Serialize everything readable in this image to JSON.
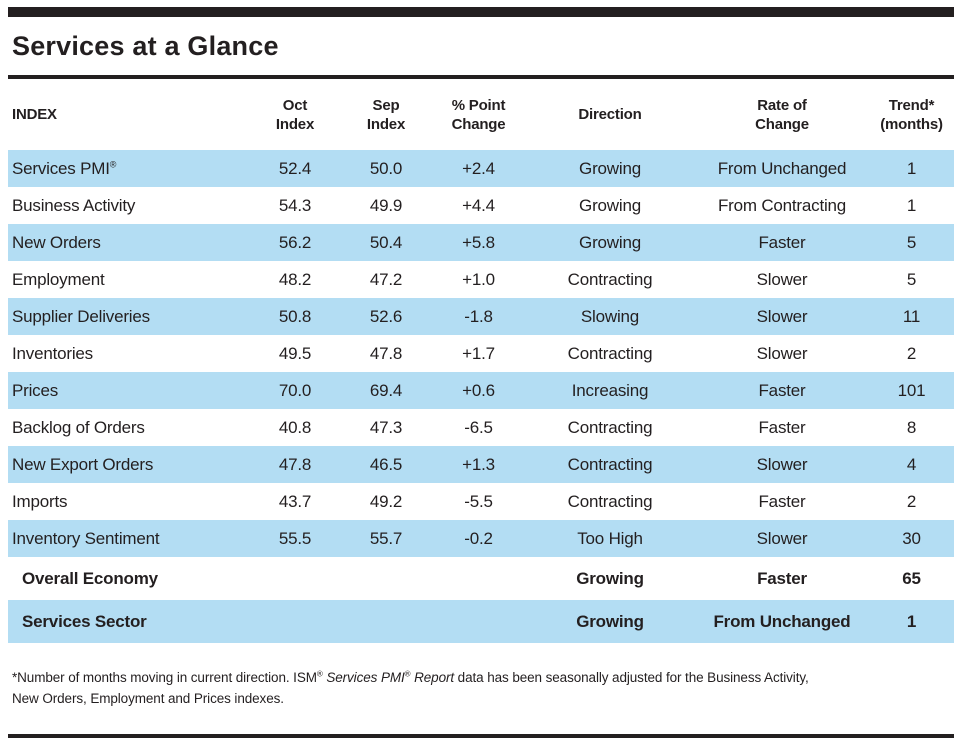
{
  "title": "Services at a Glance",
  "colors": {
    "row_shade": "#b3ddf3",
    "ink": "#231f20"
  },
  "table": {
    "columns": [
      {
        "id": "label",
        "lines": [
          "INDEX"
        ]
      },
      {
        "id": "oct",
        "lines": [
          "Oct",
          "Index"
        ]
      },
      {
        "id": "sep",
        "lines": [
          "Sep",
          "Index"
        ]
      },
      {
        "id": "change",
        "lines": [
          "% Point",
          "Change"
        ]
      },
      {
        "id": "direction",
        "lines": [
          "Direction"
        ]
      },
      {
        "id": "rate",
        "lines": [
          "Rate of",
          "Change"
        ]
      },
      {
        "id": "trend",
        "lines": [
          "Trend*",
          "(months)"
        ]
      }
    ],
    "rows": [
      {
        "label": "Services PMI®",
        "oct": "52.4",
        "sep": "50.0",
        "change": "+2.4",
        "direction": "Growing",
        "rate": "From Unchanged",
        "trend": "1",
        "shaded": true,
        "bold": false
      },
      {
        "label": "Business Activity",
        "oct": "54.3",
        "sep": "49.9",
        "change": "+4.4",
        "direction": "Growing",
        "rate": "From Contracting",
        "trend": "1",
        "shaded": false,
        "bold": false
      },
      {
        "label": "New Orders",
        "oct": "56.2",
        "sep": "50.4",
        "change": "+5.8",
        "direction": "Growing",
        "rate": "Faster",
        "trend": "5",
        "shaded": true,
        "bold": false
      },
      {
        "label": "Employment",
        "oct": "48.2",
        "sep": "47.2",
        "change": "+1.0",
        "direction": "Contracting",
        "rate": "Slower",
        "trend": "5",
        "shaded": false,
        "bold": false
      },
      {
        "label": "Supplier Deliveries",
        "oct": "50.8",
        "sep": "52.6",
        "change": "-1.8",
        "direction": "Slowing",
        "rate": "Slower",
        "trend": "11",
        "shaded": true,
        "bold": false
      },
      {
        "label": "Inventories",
        "oct": "49.5",
        "sep": "47.8",
        "change": "+1.7",
        "direction": "Contracting",
        "rate": "Slower",
        "trend": "2",
        "shaded": false,
        "bold": false
      },
      {
        "label": "Prices",
        "oct": "70.0",
        "sep": "69.4",
        "change": "+0.6",
        "direction": "Increasing",
        "rate": "Faster",
        "trend": "101",
        "shaded": true,
        "bold": false
      },
      {
        "label": "Backlog of Orders",
        "oct": "40.8",
        "sep": "47.3",
        "change": "-6.5",
        "direction": "Contracting",
        "rate": "Faster",
        "trend": "8",
        "shaded": false,
        "bold": false
      },
      {
        "label": "New Export Orders",
        "oct": "47.8",
        "sep": "46.5",
        "change": "+1.3",
        "direction": "Contracting",
        "rate": "Slower",
        "trend": "4",
        "shaded": true,
        "bold": false
      },
      {
        "label": "Imports",
        "oct": "43.7",
        "sep": "49.2",
        "change": "-5.5",
        "direction": "Contracting",
        "rate": "Faster",
        "trend": "2",
        "shaded": false,
        "bold": false
      },
      {
        "label": "Inventory Sentiment",
        "oct": "55.5",
        "sep": "55.7",
        "change": "-0.2",
        "direction": "Too High",
        "rate": "Slower",
        "trend": "30",
        "shaded": true,
        "bold": false
      },
      {
        "label": "Overall Economy",
        "oct": "",
        "sep": "",
        "change": "",
        "direction": "Growing",
        "rate": "Faster",
        "trend": "65",
        "shaded": false,
        "bold": true
      },
      {
        "label": "Services Sector",
        "oct": "",
        "sep": "",
        "change": "",
        "direction": "Growing",
        "rate": "From Unchanged",
        "trend": "1",
        "shaded": true,
        "bold": true
      }
    ]
  },
  "footnote": {
    "segments": [
      {
        "text": "*Number of months moving in current direction. ISM"
      },
      {
        "text": "®",
        "sup": true
      },
      {
        "text": " "
      },
      {
        "text": "Services PMI",
        "italic": true
      },
      {
        "text": "®",
        "sup": true
      },
      {
        "text": " "
      },
      {
        "text": "Report",
        "italic": true
      },
      {
        "text": " data has been seasonally adjusted for the Business Activity,"
      },
      {
        "br": true
      },
      {
        "text": "New Orders, Employment and Prices indexes."
      }
    ]
  }
}
